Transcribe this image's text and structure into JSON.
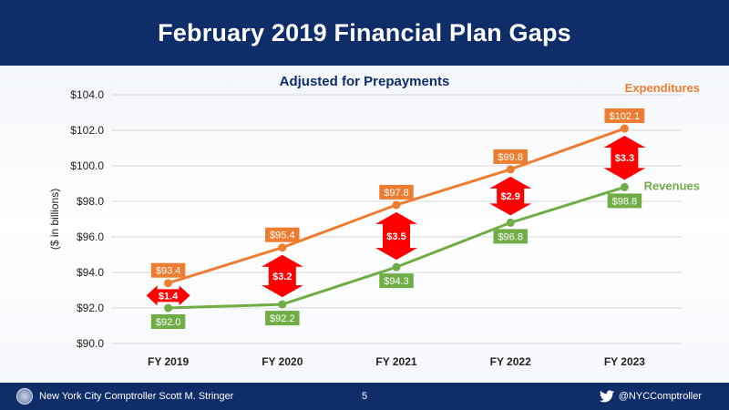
{
  "header": {
    "title": "February 2019 Financial Plan Gaps"
  },
  "footer": {
    "left_text": "New York City Comptroller Scott M. Stringer",
    "page_number": "5",
    "twitter_handle": "@NYCComptroller",
    "seal_icon": "city-seal-icon",
    "twitter_icon": "twitter-bird-icon"
  },
  "colors": {
    "header_bg": "#0f2d69",
    "expenditures": "#ed7d31",
    "revenues": "#70ad47",
    "gap_arrow": "#ff0000",
    "subtitle": "#0f2d69"
  },
  "chart_data": {
    "type": "line",
    "title": "Adjusted for Prepayments",
    "ylabel": "($ in billions)",
    "xlabel": "",
    "categories": [
      "FY 2019",
      "FY 2020",
      "FY 2021",
      "FY 2022",
      "FY 2023"
    ],
    "ylim": [
      90,
      104
    ],
    "yticks": [
      90,
      92,
      94,
      96,
      98,
      100,
      102,
      104
    ],
    "ytick_labels": [
      "$90.0",
      "$92.0",
      "$94.0",
      "$96.0",
      "$98.0",
      "$100.0",
      "$102.0",
      "$104.0"
    ],
    "grid": true,
    "series": [
      {
        "name": "Expenditures",
        "values": [
          93.4,
          95.4,
          97.8,
          99.8,
          102.1
        ],
        "labels": [
          "$93.4",
          "$95.4",
          "$97.8",
          "$99.8",
          "$102.1"
        ]
      },
      {
        "name": "Revenues",
        "values": [
          92.0,
          92.2,
          94.3,
          96.8,
          98.8
        ],
        "labels": [
          "$92.0",
          "$92.2",
          "$94.3",
          "$96.8",
          "$98.8"
        ]
      }
    ],
    "gaps": [
      {
        "value": 1.4,
        "label": "$1.4"
      },
      {
        "value": 3.2,
        "label": "$3.2"
      },
      {
        "value": 3.5,
        "label": "$3.5"
      },
      {
        "value": 2.9,
        "label": "$2.9"
      },
      {
        "value": 3.3,
        "label": "$3.3"
      }
    ]
  }
}
